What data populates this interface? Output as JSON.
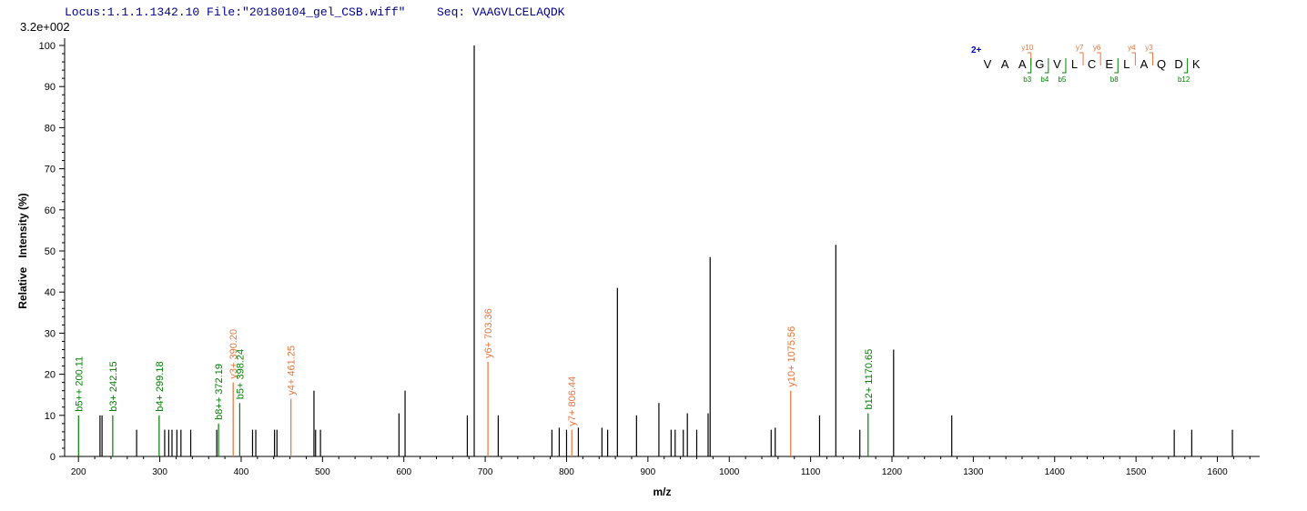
{
  "header": {
    "locus": "Locus:1.1.1.1342.10 File:\"20180104_gel_CSB.wiff\"",
    "seq": "Seq: VAAGVLCELAQDK"
  },
  "max_intensity_label": "3.2e+002",
  "colors": {
    "b_ion": "#008000",
    "y_ion": "#e8743b",
    "peak": "#000000",
    "charge": "#0000cd"
  },
  "chart_data": {
    "type": "bar",
    "xlabel": "m/z",
    "ylabel": "Relative   Intensity (%)",
    "xlim": [
      183,
      1652
    ],
    "ylim": [
      0,
      100
    ],
    "xticks": [
      200,
      300,
      400,
      500,
      600,
      700,
      800,
      900,
      1000,
      1100,
      1200,
      1300,
      1400,
      1500,
      1600
    ],
    "yticks": [
      0,
      10,
      20,
      30,
      40,
      50,
      60,
      70,
      80,
      90,
      100
    ],
    "peaks": [
      {
        "mz": 200.11,
        "i": 10,
        "ion": "b",
        "label": "b5++ 200.11"
      },
      {
        "mz": 226.5,
        "i": 10
      },
      {
        "mz": 229.0,
        "i": 10
      },
      {
        "mz": 242.15,
        "i": 10,
        "ion": "b",
        "label": "b3+ 242.15"
      },
      {
        "mz": 271.5,
        "i": 6.5
      },
      {
        "mz": 299.18,
        "i": 10,
        "ion": "b",
        "label": "b4+ 299.18"
      },
      {
        "mz": 306.0,
        "i": 6.5
      },
      {
        "mz": 311.0,
        "i": 6.5
      },
      {
        "mz": 315.0,
        "i": 6.5
      },
      {
        "mz": 321.0,
        "i": 6.5
      },
      {
        "mz": 326.0,
        "i": 6.5
      },
      {
        "mz": 338.0,
        "i": 6.5
      },
      {
        "mz": 370.0,
        "i": 6.5
      },
      {
        "mz": 372.19,
        "i": 8,
        "ion": "b",
        "label": "b8++ 372.19"
      },
      {
        "mz": 390.2,
        "i": 18,
        "ion": "y",
        "label": "y3+ 390.20"
      },
      {
        "mz": 398.24,
        "i": 13,
        "ion": "b",
        "label": "b5+ 398.24"
      },
      {
        "mz": 414.0,
        "i": 6.5
      },
      {
        "mz": 418.0,
        "i": 6.5
      },
      {
        "mz": 441.0,
        "i": 6.5
      },
      {
        "mz": 444.0,
        "i": 6.5
      },
      {
        "mz": 461.25,
        "i": 14,
        "ion": "y",
        "label": "y4+ 461.25"
      },
      {
        "mz": 489.5,
        "i": 16
      },
      {
        "mz": 491.5,
        "i": 6.5
      },
      {
        "mz": 497.5,
        "i": 6.5
      },
      {
        "mz": 594.0,
        "i": 10.5
      },
      {
        "mz": 601.5,
        "i": 16
      },
      {
        "mz": 678.0,
        "i": 10
      },
      {
        "mz": 686.5,
        "i": 100
      },
      {
        "mz": 703.36,
        "i": 23,
        "ion": "y",
        "label": "y6+ 703.36"
      },
      {
        "mz": 716.0,
        "i": 10
      },
      {
        "mz": 782.0,
        "i": 6.5
      },
      {
        "mz": 791.0,
        "i": 7
      },
      {
        "mz": 800.0,
        "i": 6.5
      },
      {
        "mz": 806.44,
        "i": 6.5,
        "ion": "y",
        "label": "y7+ 806.44"
      },
      {
        "mz": 814.5,
        "i": 7
      },
      {
        "mz": 843.5,
        "i": 7
      },
      {
        "mz": 850.5,
        "i": 6.5
      },
      {
        "mz": 862.5,
        "i": 41
      },
      {
        "mz": 886.0,
        "i": 10
      },
      {
        "mz": 913.5,
        "i": 13
      },
      {
        "mz": 928.5,
        "i": 6.5
      },
      {
        "mz": 933.5,
        "i": 6.5
      },
      {
        "mz": 943.5,
        "i": 6.5
      },
      {
        "mz": 948.5,
        "i": 10.5
      },
      {
        "mz": 960.0,
        "i": 6.5
      },
      {
        "mz": 974.0,
        "i": 10.5
      },
      {
        "mz": 976.5,
        "i": 48.5
      },
      {
        "mz": 1051.5,
        "i": 6.5
      },
      {
        "mz": 1056.5,
        "i": 7
      },
      {
        "mz": 1075.56,
        "i": 16,
        "ion": "y",
        "label": "y10+ 1075.56"
      },
      {
        "mz": 1111.0,
        "i": 10
      },
      {
        "mz": 1131.0,
        "i": 51.5
      },
      {
        "mz": 1160.5,
        "i": 6.5
      },
      {
        "mz": 1170.65,
        "i": 10.5,
        "ion": "b",
        "label": "b12+ 1170.65"
      },
      {
        "mz": 1202.0,
        "i": 26
      },
      {
        "mz": 1273.5,
        "i": 10
      },
      {
        "mz": 1547.0,
        "i": 6.5
      },
      {
        "mz": 1568.5,
        "i": 6.5
      },
      {
        "mz": 1618.5,
        "i": 6.5
      }
    ],
    "sequence_annotation": {
      "charge": "2+",
      "residues": [
        "V",
        "A",
        "A",
        "G",
        "V",
        "L",
        "C",
        "E",
        "L",
        "A",
        "Q",
        "D",
        "K"
      ],
      "y_marks": [
        {
          "after": 3,
          "label": "y10"
        },
        {
          "after": 6,
          "label": "y7"
        },
        {
          "after": 7,
          "label": "y6"
        },
        {
          "after": 9,
          "label": "y4"
        },
        {
          "after": 10,
          "label": "y3"
        }
      ],
      "b_marks": [
        {
          "after": 3,
          "label": "b3"
        },
        {
          "after": 4,
          "label": "b4"
        },
        {
          "after": 5,
          "label": "b5"
        },
        {
          "after": 8,
          "label": "b8"
        },
        {
          "after": 12,
          "label": "b12"
        }
      ]
    }
  }
}
